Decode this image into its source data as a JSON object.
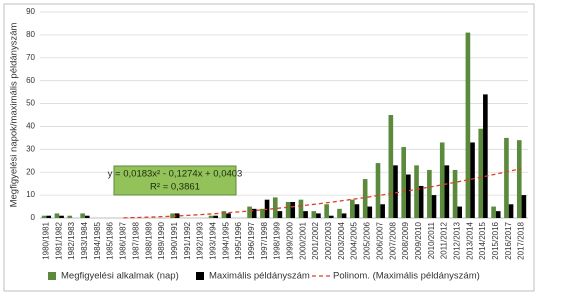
{
  "chart_data": {
    "type": "bar",
    "y_label": "Megfigyelési napok/maximális példányszám",
    "annotations": [
      "y = 0,0183x² - 0,1274x + 0,0403",
      "R² = 0,3861"
    ],
    "categories": [
      "1980/1981",
      "1981/1982",
      "1982/1983",
      "1983/1984",
      "1984/1985",
      "1985/1986",
      "1986/1987",
      "1987/1988",
      "1988/1989",
      "1989/1990",
      "1990/1991",
      "1991/1992",
      "1992/1993",
      "1993/1994",
      "1994/1995",
      "1995/1996",
      "1996/1997",
      "1997/1998",
      "1998/1999",
      "1999/2000",
      "2000/2001",
      "2001/2002",
      "2002/2003",
      "2003/2004",
      "2004/2005",
      "2005/2006",
      "2006/2007",
      "2007/2008",
      "2008/2009",
      "2009/2010",
      "2010/2011",
      "2011/2012",
      "2012/2013",
      "2013/2014",
      "2014/2015",
      "2015/2016",
      "2016/2017",
      "2017/2018"
    ],
    "series": [
      {
        "name": "Megfigyelési alkalmak (nap)",
        "color": "#5b8a3c",
        "style": "bar",
        "values": [
          1,
          2,
          1,
          2,
          0,
          0,
          0,
          0,
          0,
          0,
          2,
          0,
          0,
          1,
          3,
          0,
          5,
          4,
          9,
          7,
          8,
          3,
          6,
          4,
          8,
          17,
          24,
          45,
          31,
          23,
          21,
          33,
          21,
          81,
          39,
          5,
          35,
          34
        ]
      },
      {
        "name": "Maximális példányszám",
        "color": "#000000",
        "style": "bar",
        "values": [
          1,
          1,
          0,
          1,
          0,
          0,
          0,
          0,
          0,
          0,
          2,
          0,
          0,
          1,
          2,
          0,
          4,
          8,
          3,
          7,
          3,
          2,
          1,
          2,
          6,
          5,
          6,
          23,
          19,
          14,
          10,
          23,
          5,
          33,
          54,
          3,
          6,
          10
        ]
      },
      {
        "name": "Polinom. (Maximális példányszám)",
        "color": "#d9412b",
        "style": "dashed-line",
        "values": [
          null,
          null,
          null,
          null,
          null,
          null,
          0.05,
          0.19,
          0.38,
          0.6,
          0.85,
          1.15,
          1.48,
          1.84,
          2.25,
          2.69,
          3.16,
          3.68,
          4.23,
          4.81,
          5.44,
          6.09,
          6.79,
          7.52,
          8.29,
          9.1,
          9.94,
          10.82,
          11.74,
          12.69,
          13.68,
          14.7,
          15.76,
          16.86,
          18.0,
          19.17,
          20.38,
          21.62
        ]
      }
    ],
    "ylim": [
      0,
      90
    ],
    "yticks": [
      0,
      10,
      20,
      30,
      40,
      50,
      60,
      70,
      80,
      90
    ],
    "grid": true,
    "legend": "bottom"
  }
}
